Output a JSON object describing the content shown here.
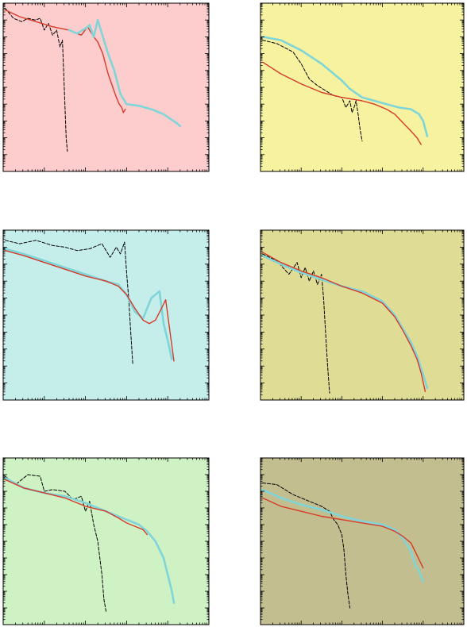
{
  "chart_data": [
    {
      "type": "line",
      "background": "#fdcdcd",
      "xscale": "log",
      "yscale": "log",
      "xlim": [
        0,
        5
      ],
      "ylim": [
        -9,
        1
      ],
      "series": [
        {
          "color": "#000000",
          "style": "dashed",
          "x": [
            0.05,
            0.25,
            0.45,
            0.6,
            0.78,
            0.9,
            1.0,
            1.1,
            1.2,
            1.3,
            1.38,
            1.44,
            1.47,
            1.5,
            1.53,
            1.56
          ],
          "y": [
            0.7,
            0.1,
            -0.1,
            0.1,
            0.0,
            0.1,
            -0.6,
            -0.2,
            -0.9,
            -0.6,
            -1.6,
            -1.2,
            -3.0,
            -5.0,
            -7.0,
            -7.8
          ]
        },
        {
          "color": "#d63b2a",
          "style": "solid",
          "x": [
            0.05,
            0.4,
            0.8,
            1.2,
            1.6,
            1.9,
            2.05,
            2.2,
            2.3,
            2.42,
            2.55,
            2.65,
            2.75,
            2.82,
            2.88,
            2.92,
            2.97
          ],
          "y": [
            0.6,
            0.2,
            -0.1,
            -0.4,
            -0.6,
            -0.9,
            -0.4,
            -1.0,
            -1.3,
            -2.0,
            -3.2,
            -3.9,
            -4.6,
            -5.0,
            -5.2,
            -5.5,
            -5.3
          ]
        },
        {
          "color": "#7fd5d8",
          "style": "solid",
          "x": [
            1.6,
            1.8,
            2.0,
            2.1,
            2.2,
            2.3,
            2.4,
            2.55,
            2.7,
            2.85,
            3.0,
            3.3,
            3.6,
            3.9,
            4.2,
            4.3
          ],
          "y": [
            -0.6,
            -0.8,
            -0.5,
            -0.3,
            -1.0,
            0.0,
            -0.8,
            -2.0,
            -3.0,
            -4.4,
            -5.0,
            -5.1,
            -5.3,
            -5.6,
            -6.1,
            -6.3
          ]
        }
      ]
    },
    {
      "type": "line",
      "background": "#f6f2a0",
      "xscale": "log",
      "yscale": "log",
      "xlim": [
        0,
        5
      ],
      "ylim": [
        -9,
        1
      ],
      "series": [
        {
          "color": "#000000",
          "style": "dashed",
          "x": [
            0.05,
            0.4,
            0.8,
            1.0,
            1.2,
            1.4,
            1.6,
            1.8,
            2.0,
            2.1,
            2.2,
            2.25,
            2.3,
            2.35,
            2.4,
            2.45,
            2.5
          ],
          "y": [
            -1.2,
            -1.4,
            -1.9,
            -2.6,
            -3.5,
            -3.9,
            -4.2,
            -4.5,
            -4.6,
            -5.2,
            -4.8,
            -5.5,
            -5.2,
            -4.8,
            -5.6,
            -6.5,
            -7.2
          ]
        },
        {
          "color": "#7fd5d8",
          "style": "solid",
          "x": [
            0.05,
            0.5,
            1.0,
            1.5,
            1.8,
            2.0,
            2.2,
            2.5,
            2.8,
            3.1,
            3.4,
            3.7,
            3.9,
            4.0,
            4.1
          ],
          "y": [
            -1.0,
            -1.2,
            -1.8,
            -2.6,
            -3.2,
            -3.6,
            -4.1,
            -4.6,
            -4.8,
            -5.0,
            -5.2,
            -5.3,
            -5.6,
            -6.0,
            -6.9
          ]
        },
        {
          "color": "#d63b2a",
          "style": "solid",
          "x": [
            0.05,
            0.5,
            1.0,
            1.5,
            2.0,
            2.5,
            2.8,
            3.1,
            3.3,
            3.5,
            3.7,
            3.85,
            3.95
          ],
          "y": [
            -2.5,
            -3.2,
            -3.8,
            -4.3,
            -4.6,
            -4.8,
            -5.0,
            -5.3,
            -5.6,
            -6.1,
            -6.6,
            -7.0,
            -7.4
          ]
        }
      ]
    },
    {
      "type": "line",
      "background": "#c5eeeb",
      "xscale": "log",
      "yscale": "log",
      "xlim": [
        0,
        5
      ],
      "ylim": [
        -9,
        1
      ],
      "series": [
        {
          "color": "#000000",
          "style": "dashed",
          "x": [
            0.05,
            0.4,
            0.8,
            1.2,
            1.5,
            1.8,
            2.1,
            2.4,
            2.6,
            2.75,
            2.85,
            2.95,
            3.0,
            3.05,
            3.1,
            3.15
          ],
          "y": [
            0.4,
            0.2,
            0.4,
            0.1,
            0.0,
            -0.2,
            -0.1,
            0.2,
            -0.6,
            0.0,
            -0.4,
            0.3,
            -1.5,
            -3.0,
            -5.0,
            -6.9
          ]
        },
        {
          "color": "#7fd5d8",
          "style": "solid",
          "x": [
            0.05,
            0.5,
            1.0,
            1.5,
            2.0,
            2.5,
            2.8,
            3.0,
            3.2,
            3.4,
            3.6,
            3.8,
            3.9,
            4.0,
            4.1
          ],
          "y": [
            -0.1,
            -0.4,
            -0.8,
            -1.2,
            -1.6,
            -2.0,
            -2.2,
            -2.8,
            -3.8,
            -4.2,
            -3.0,
            -2.6,
            -4.5,
            -5.5,
            -6.6
          ]
        },
        {
          "color": "#d63b2a",
          "style": "solid",
          "x": [
            0.05,
            0.5,
            1.0,
            1.5,
            2.0,
            2.5,
            2.8,
            3.0,
            3.2,
            3.4,
            3.55,
            3.7,
            3.85,
            3.95,
            4.05,
            4.15
          ],
          "y": [
            -0.2,
            -0.5,
            -0.9,
            -1.3,
            -1.7,
            -2.0,
            -2.3,
            -2.8,
            -3.6,
            -4.3,
            -4.5,
            -4.3,
            -3.6,
            -3.1,
            -4.9,
            -6.7
          ]
        }
      ]
    },
    {
      "type": "line",
      "background": "#dfdc96",
      "xscale": "log",
      "yscale": "log",
      "xlim": [
        0,
        5
      ],
      "ylim": [
        -9,
        1
      ],
      "series": [
        {
          "color": "#000000",
          "style": "dashed",
          "x": [
            0.05,
            0.4,
            0.7,
            0.9,
            1.0,
            1.1,
            1.2,
            1.3,
            1.4,
            1.5,
            1.55,
            1.6,
            1.65,
            1.7
          ],
          "y": [
            -0.4,
            -0.8,
            -1.6,
            -0.9,
            -1.8,
            -1.2,
            -2.0,
            -1.4,
            -2.2,
            -1.6,
            -3.0,
            -5.0,
            -7.0,
            -8.6
          ]
        },
        {
          "color": "#7fd5d8",
          "style": "solid",
          "x": [
            0.05,
            0.5,
            1.0,
            1.5,
            2.0,
            2.5,
            3.0,
            3.3,
            3.5,
            3.7,
            3.85,
            4.0,
            4.1
          ],
          "y": [
            -0.5,
            -1.0,
            -1.5,
            -1.9,
            -2.3,
            -2.6,
            -3.2,
            -4.0,
            -4.8,
            -5.6,
            -6.4,
            -7.5,
            -8.3
          ]
        },
        {
          "color": "#d63b2a",
          "style": "solid",
          "x": [
            0.05,
            0.5,
            1.0,
            1.5,
            2.0,
            2.5,
            3.0,
            3.3,
            3.5,
            3.7,
            3.85,
            3.95,
            4.05
          ],
          "y": [
            -0.3,
            -0.9,
            -1.4,
            -1.8,
            -2.3,
            -2.7,
            -3.3,
            -4.1,
            -4.9,
            -5.8,
            -6.6,
            -7.4,
            -8.5
          ]
        }
      ]
    },
    {
      "type": "line",
      "background": "#cff2c5",
      "xscale": "log",
      "yscale": "log",
      "xlim": [
        0,
        5
      ],
      "ylim": [
        -9,
        1
      ],
      "series": [
        {
          "color": "#000000",
          "style": "dashed",
          "x": [
            0.05,
            0.3,
            0.6,
            0.9,
            1.0,
            1.2,
            1.5,
            1.7,
            1.9,
            2.0,
            2.1,
            2.2,
            2.3,
            2.4,
            2.45,
            2.5
          ],
          "y": [
            -0.1,
            -0.6,
            0.0,
            -0.1,
            -1.0,
            -0.9,
            -1.0,
            -1.5,
            -1.3,
            -2.2,
            -1.6,
            -3.0,
            -4.0,
            -6.0,
            -7.5,
            -8.2
          ]
        },
        {
          "color": "#7fd5d8",
          "style": "solid",
          "x": [
            0.05,
            0.5,
            1.0,
            1.5,
            2.0,
            2.5,
            3.0,
            3.3,
            3.5,
            3.7,
            3.9,
            4.0,
            4.1,
            4.15
          ],
          "y": [
            -0.2,
            -0.8,
            -1.1,
            -1.3,
            -1.7,
            -2.2,
            -2.7,
            -3.0,
            -3.4,
            -4.0,
            -5.0,
            -6.0,
            -7.0,
            -7.7
          ]
        },
        {
          "color": "#d63b2a",
          "style": "solid",
          "x": [
            0.05,
            0.5,
            1.0,
            1.5,
            2.0,
            2.5,
            2.8,
            3.0,
            3.2,
            3.4,
            3.5
          ],
          "y": [
            -0.3,
            -0.8,
            -1.1,
            -1.4,
            -1.9,
            -2.2,
            -2.6,
            -2.9,
            -3.1,
            -3.3,
            -3.6
          ]
        }
      ]
    },
    {
      "type": "line",
      "background": "#c2be8f",
      "xscale": "log",
      "yscale": "log",
      "xlim": [
        0,
        5
      ],
      "ylim": [
        -9,
        1
      ],
      "series": [
        {
          "color": "#000000",
          "style": "dashed",
          "x": [
            0.05,
            0.4,
            0.8,
            1.2,
            1.5,
            1.7,
            1.8,
            1.9,
            1.95,
            2.0,
            2.05,
            2.1,
            2.15,
            2.2
          ],
          "y": [
            -0.5,
            -0.6,
            -1.2,
            -1.6,
            -1.9,
            -2.2,
            -2.7,
            -3.0,
            -3.3,
            -3.6,
            -4.5,
            -6.0,
            -7.2,
            -8.0
          ]
        },
        {
          "color": "#7fd5d8",
          "style": "solid",
          "x": [
            0.05,
            0.5,
            1.0,
            1.5,
            2.0,
            2.5,
            3.0,
            3.3,
            3.5,
            3.7,
            3.8,
            3.9,
            4.0
          ],
          "y": [
            -0.9,
            -1.4,
            -1.8,
            -2.1,
            -2.5,
            -2.8,
            -3.0,
            -3.3,
            -3.8,
            -4.6,
            -5.4,
            -5.8,
            -6.4
          ]
        },
        {
          "color": "#d63b2a",
          "style": "solid",
          "x": [
            0.05,
            0.5,
            1.0,
            1.5,
            2.0,
            2.5,
            3.0,
            3.3,
            3.5,
            3.7,
            3.8,
            3.9,
            4.0
          ],
          "y": [
            -1.4,
            -1.9,
            -2.2,
            -2.5,
            -2.7,
            -2.9,
            -3.1,
            -3.4,
            -3.7,
            -4.1,
            -4.6,
            -5.1,
            -5.6
          ]
        }
      ]
    }
  ]
}
